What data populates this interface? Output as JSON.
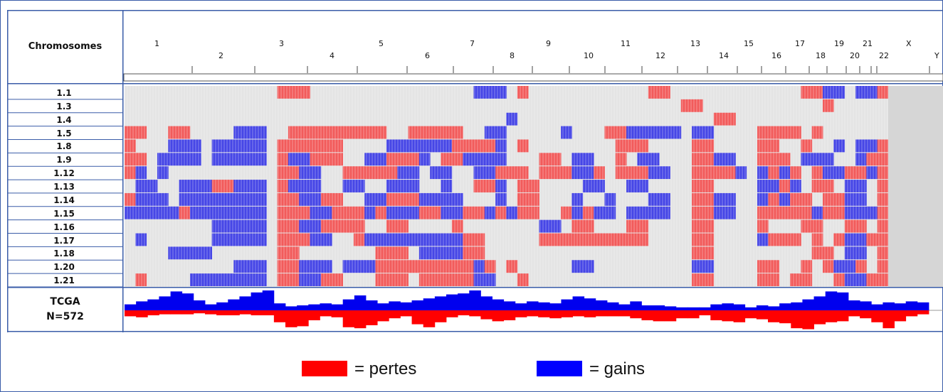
{
  "colors": {
    "loss": "#f25b5b",
    "gain": "#4646e6",
    "loss_track": "#ff0000",
    "gain_track": "#0000ee",
    "neutral": "#e4e4e4",
    "border": "#3a5ca8",
    "unmapped": "#d6d6d6"
  },
  "header": {
    "title": "Chromosomes"
  },
  "chart_data": {
    "type": "heatmap",
    "title": "",
    "x_axis_label": "Chromosomes",
    "chromosomes": [
      "1",
      "2",
      "3",
      "4",
      "5",
      "6",
      "7",
      "8",
      "9",
      "10",
      "11",
      "12",
      "13",
      "14",
      "15",
      "16",
      "17",
      "18",
      "19",
      "20",
      "21",
      "22",
      "X",
      "Y"
    ],
    "samples": [
      "1.1",
      "1.3",
      "1.4",
      "1.5",
      "1.8",
      "1.9",
      "1.12",
      "1.13",
      "1.14",
      "1.15",
      "1.16",
      "1.17",
      "1.18",
      "1.20",
      "1.21"
    ],
    "value_legend": {
      "loss": "pertes",
      "gain": "gains"
    },
    "rows": [
      [
        0,
        0,
        0,
        0,
        0,
        0,
        0,
        0,
        0,
        0,
        0,
        0,
        0,
        0,
        -1,
        -1,
        -1,
        0,
        0,
        0,
        0,
        0,
        0,
        0,
        0,
        0,
        0,
        0,
        0,
        0,
        0,
        0,
        1,
        1,
        1,
        0,
        -1,
        0,
        0,
        0,
        0,
        0,
        0,
        0,
        0,
        0,
        0,
        0,
        -1,
        -1,
        0,
        0,
        0,
        0,
        0,
        0,
        0,
        0,
        0,
        0,
        0,
        0,
        -1,
        -1,
        1,
        1,
        0,
        1,
        1,
        -1
      ],
      [
        0,
        0,
        0,
        0,
        0,
        0,
        0,
        0,
        0,
        0,
        0,
        0,
        0,
        0,
        0,
        0,
        0,
        0,
        0,
        0,
        0,
        0,
        0,
        0,
        0,
        0,
        0,
        0,
        0,
        0,
        0,
        0,
        0,
        0,
        0,
        0,
        0,
        0,
        0,
        0,
        0,
        0,
        0,
        0,
        0,
        0,
        0,
        0,
        0,
        0,
        0,
        -1,
        -1,
        0,
        0,
        0,
        0,
        0,
        0,
        0,
        0,
        0,
        0,
        0,
        -1,
        0,
        0,
        0,
        0,
        0,
        0,
        0
      ],
      [
        0,
        0,
        0,
        0,
        0,
        0,
        0,
        0,
        0,
        0,
        0,
        0,
        0,
        0,
        0,
        0,
        0,
        0,
        0,
        0,
        0,
        0,
        0,
        0,
        0,
        0,
        0,
        0,
        0,
        0,
        0,
        0,
        0,
        0,
        0,
        1,
        0,
        0,
        0,
        0,
        0,
        0,
        0,
        0,
        0,
        0,
        0,
        0,
        0,
        0,
        0,
        0,
        0,
        0,
        -1,
        -1,
        0,
        0,
        0,
        0,
        0,
        0,
        0,
        0,
        0,
        0,
        0,
        0,
        0,
        0,
        0,
        -1
      ],
      [
        -1,
        -1,
        0,
        0,
        -1,
        -1,
        0,
        0,
        0,
        0,
        1,
        1,
        1,
        0,
        0,
        -1,
        -1,
        -1,
        -1,
        -1,
        -1,
        -1,
        -1,
        -1,
        0,
        0,
        -1,
        -1,
        -1,
        -1,
        -1,
        0,
        0,
        1,
        1,
        0,
        0,
        0,
        0,
        0,
        1,
        0,
        0,
        0,
        -1,
        -1,
        1,
        1,
        1,
        1,
        1,
        0,
        1,
        1,
        0,
        0,
        0,
        0,
        -1,
        -1,
        -1,
        -1,
        0,
        -1,
        0,
        0,
        0,
        0,
        0,
        0,
        1,
        -1
      ],
      [
        -1,
        0,
        0,
        0,
        1,
        1,
        1,
        0,
        1,
        1,
        1,
        1,
        1,
        0,
        -1,
        -1,
        -1,
        -1,
        -1,
        -1,
        0,
        0,
        0,
        0,
        1,
        1,
        1,
        1,
        1,
        1,
        -1,
        -1,
        -1,
        -1,
        1,
        0,
        -1,
        0,
        0,
        0,
        0,
        0,
        0,
        0,
        0,
        -1,
        -1,
        -1,
        0,
        0,
        0,
        0,
        -1,
        -1,
        0,
        0,
        0,
        0,
        -1,
        -1,
        0,
        0,
        -1,
        0,
        0,
        1,
        0,
        1,
        1,
        -1
      ],
      [
        -1,
        -1,
        0,
        1,
        1,
        1,
        1,
        0,
        1,
        1,
        1,
        1,
        1,
        0,
        -1,
        1,
        1,
        -1,
        -1,
        -1,
        0,
        0,
        1,
        1,
        -1,
        -1,
        -1,
        1,
        0,
        -1,
        -1,
        1,
        1,
        1,
        1,
        0,
        0,
        0,
        -1,
        -1,
        0,
        1,
        1,
        0,
        0,
        -1,
        0,
        1,
        1,
        0,
        0,
        0,
        -1,
        -1,
        1,
        1,
        0,
        0,
        -1,
        -1,
        -1,
        0,
        1,
        1,
        1,
        0,
        0,
        1,
        -1,
        -1
      ],
      [
        -1,
        1,
        0,
        1,
        0,
        0,
        0,
        0,
        0,
        0,
        0,
        0,
        0,
        0,
        -1,
        -1,
        1,
        1,
        0,
        0,
        -1,
        -1,
        -1,
        -1,
        -1,
        1,
        1,
        0,
        1,
        1,
        0,
        0,
        1,
        1,
        -1,
        -1,
        -1,
        0,
        -1,
        -1,
        -1,
        1,
        1,
        -1,
        0,
        -1,
        -1,
        -1,
        1,
        1,
        0,
        0,
        -1,
        -1,
        -1,
        -1,
        1,
        0,
        1,
        -1,
        1,
        -1,
        0,
        -1,
        1,
        1,
        -1,
        -1,
        1,
        -1
      ],
      [
        0,
        1,
        1,
        0,
        0,
        1,
        1,
        1,
        -1,
        -1,
        1,
        1,
        1,
        0,
        -1,
        1,
        1,
        1,
        0,
        0,
        1,
        1,
        0,
        0,
        1,
        1,
        1,
        0,
        0,
        1,
        0,
        0,
        -1,
        -1,
        1,
        0,
        -1,
        -1,
        0,
        0,
        0,
        0,
        1,
        1,
        0,
        0,
        1,
        1,
        0,
        0,
        0,
        0,
        -1,
        -1,
        0,
        0,
        0,
        0,
        1,
        1,
        -1,
        1,
        0,
        -1,
        -1,
        0,
        1,
        1,
        0,
        -1
      ],
      [
        -1,
        1,
        1,
        1,
        0,
        1,
        1,
        1,
        1,
        1,
        1,
        1,
        1,
        0,
        -1,
        -1,
        1,
        1,
        -1,
        -1,
        0,
        0,
        1,
        1,
        -1,
        -1,
        -1,
        1,
        1,
        1,
        1,
        0,
        0,
        0,
        1,
        0,
        -1,
        -1,
        0,
        0,
        0,
        1,
        0,
        0,
        1,
        0,
        0,
        0,
        1,
        1,
        0,
        0,
        -1,
        -1,
        1,
        1,
        0,
        0,
        1,
        -1,
        1,
        -1,
        -1,
        0,
        -1,
        -1,
        1,
        1,
        0,
        -1
      ],
      [
        1,
        1,
        1,
        1,
        1,
        -1,
        1,
        1,
        1,
        1,
        1,
        1,
        1,
        0,
        -1,
        -1,
        -1,
        1,
        1,
        -1,
        -1,
        -1,
        1,
        -1,
        1,
        1,
        1,
        -1,
        -1,
        1,
        1,
        -1,
        -1,
        1,
        -1,
        1,
        -1,
        -1,
        0,
        0,
        -1,
        1,
        -1,
        1,
        1,
        0,
        1,
        1,
        1,
        1,
        0,
        0,
        -1,
        -1,
        1,
        1,
        0,
        0,
        -1,
        -1,
        -1,
        -1,
        -1,
        1,
        -1,
        -1,
        1,
        1,
        1,
        -1
      ],
      [
        0,
        0,
        0,
        0,
        0,
        0,
        0,
        0,
        1,
        1,
        1,
        1,
        1,
        0,
        -1,
        -1,
        1,
        1,
        -1,
        -1,
        -1,
        -1,
        0,
        0,
        -1,
        -1,
        0,
        0,
        0,
        0,
        -1,
        0,
        0,
        0,
        0,
        0,
        0,
        0,
        1,
        1,
        0,
        -1,
        -1,
        0,
        0,
        0,
        -1,
        -1,
        0,
        0,
        0,
        0,
        -1,
        -1,
        0,
        0,
        0,
        0,
        -1,
        0,
        0,
        0,
        -1,
        -1,
        0,
        0,
        -1,
        -1,
        0,
        -1
      ],
      [
        0,
        1,
        0,
        0,
        0,
        0,
        0,
        0,
        1,
        1,
        1,
        1,
        1,
        0,
        -1,
        -1,
        -1,
        1,
        1,
        0,
        0,
        -1,
        1,
        1,
        1,
        1,
        1,
        1,
        1,
        1,
        1,
        -1,
        -1,
        0,
        0,
        0,
        0,
        0,
        -1,
        -1,
        -1,
        -1,
        -1,
        -1,
        -1,
        -1,
        -1,
        -1,
        0,
        0,
        0,
        0,
        -1,
        -1,
        0,
        0,
        0,
        0,
        1,
        -1,
        -1,
        -1,
        0,
        -1,
        0,
        -1,
        1,
        1,
        -1,
        -1
      ],
      [
        0,
        0,
        0,
        0,
        1,
        1,
        1,
        1,
        0,
        0,
        0,
        0,
        0,
        0,
        -1,
        -1,
        0,
        0,
        0,
        0,
        0,
        0,
        0,
        -1,
        -1,
        -1,
        0,
        1,
        1,
        1,
        1,
        -1,
        -1,
        0,
        0,
        0,
        0,
        0,
        0,
        0,
        0,
        0,
        0,
        0,
        0,
        0,
        0,
        0,
        0,
        0,
        0,
        0,
        -1,
        -1,
        0,
        0,
        0,
        0,
        0,
        0,
        0,
        0,
        0,
        -1,
        -1,
        0,
        1,
        1,
        0,
        -1
      ],
      [
        0,
        0,
        0,
        0,
        0,
        0,
        0,
        0,
        0,
        0,
        1,
        1,
        1,
        0,
        -1,
        -1,
        1,
        1,
        1,
        0,
        1,
        1,
        1,
        -1,
        -1,
        -1,
        -1,
        -1,
        -1,
        -1,
        -1,
        -1,
        1,
        -1,
        0,
        -1,
        0,
        0,
        0,
        0,
        0,
        1,
        1,
        0,
        0,
        0,
        0,
        0,
        0,
        0,
        0,
        0,
        1,
        1,
        0,
        0,
        0,
        0,
        -1,
        -1,
        0,
        0,
        -1,
        0,
        -1,
        1,
        1,
        -1,
        0,
        -1
      ],
      [
        0,
        -1,
        0,
        0,
        0,
        0,
        1,
        1,
        1,
        1,
        1,
        1,
        1,
        0,
        -1,
        -1,
        1,
        1,
        -1,
        -1,
        0,
        0,
        0,
        -1,
        -1,
        -1,
        0,
        -1,
        -1,
        -1,
        -1,
        -1,
        1,
        1,
        0,
        0,
        -1,
        0,
        0,
        0,
        0,
        0,
        0,
        0,
        0,
        0,
        0,
        0,
        0,
        0,
        0,
        0,
        -1,
        -1,
        0,
        0,
        0,
        0,
        -1,
        -1,
        0,
        -1,
        -1,
        0,
        0,
        -1,
        1,
        1,
        -1,
        -1
      ]
    ],
    "aggregate_track": {
      "label": "TCGA N=572",
      "gains": [
        0.3,
        0.45,
        0.55,
        0.7,
        0.95,
        0.85,
        0.5,
        0.3,
        0.4,
        0.55,
        0.7,
        0.9,
        1.0,
        0.35,
        0.2,
        0.25,
        0.3,
        0.35,
        0.3,
        0.55,
        0.75,
        0.5,
        0.35,
        0.45,
        0.4,
        0.5,
        0.6,
        0.7,
        0.8,
        0.85,
        1.0,
        0.7,
        0.55,
        0.45,
        0.35,
        0.45,
        0.4,
        0.35,
        0.55,
        0.7,
        0.6,
        0.5,
        0.4,
        0.3,
        0.45,
        0.25,
        0.25,
        0.2,
        0.15,
        0.15,
        0.15,
        0.3,
        0.35,
        0.3,
        0.15,
        0.25,
        0.2,
        0.35,
        0.4,
        0.55,
        0.7,
        0.95,
        0.9,
        0.5,
        0.45,
        0.3,
        0.4,
        0.35,
        0.45,
        0.4
      ],
      "losses": [
        0.3,
        0.35,
        0.25,
        0.2,
        0.2,
        0.2,
        0.15,
        0.2,
        0.25,
        0.25,
        0.2,
        0.25,
        0.25,
        0.6,
        0.85,
        0.8,
        0.5,
        0.3,
        0.35,
        0.85,
        0.9,
        0.75,
        0.55,
        0.4,
        0.3,
        0.7,
        0.85,
        0.6,
        0.35,
        0.25,
        0.3,
        0.45,
        0.55,
        0.5,
        0.35,
        0.3,
        0.35,
        0.4,
        0.35,
        0.3,
        0.35,
        0.3,
        0.3,
        0.3,
        0.4,
        0.5,
        0.55,
        0.55,
        0.4,
        0.4,
        0.25,
        0.5,
        0.55,
        0.6,
        0.4,
        0.45,
        0.6,
        0.65,
        0.9,
        0.95,
        0.7,
        0.6,
        0.55,
        0.3,
        0.4,
        0.6,
        0.9,
        0.55,
        0.3,
        0.2
      ]
    }
  },
  "tracks": {
    "tcga_label_line1": "TCGA",
    "tcga_label_line2": "N=572"
  },
  "legend": {
    "loss_text": "= pertes",
    "gain_text": "= gains"
  }
}
